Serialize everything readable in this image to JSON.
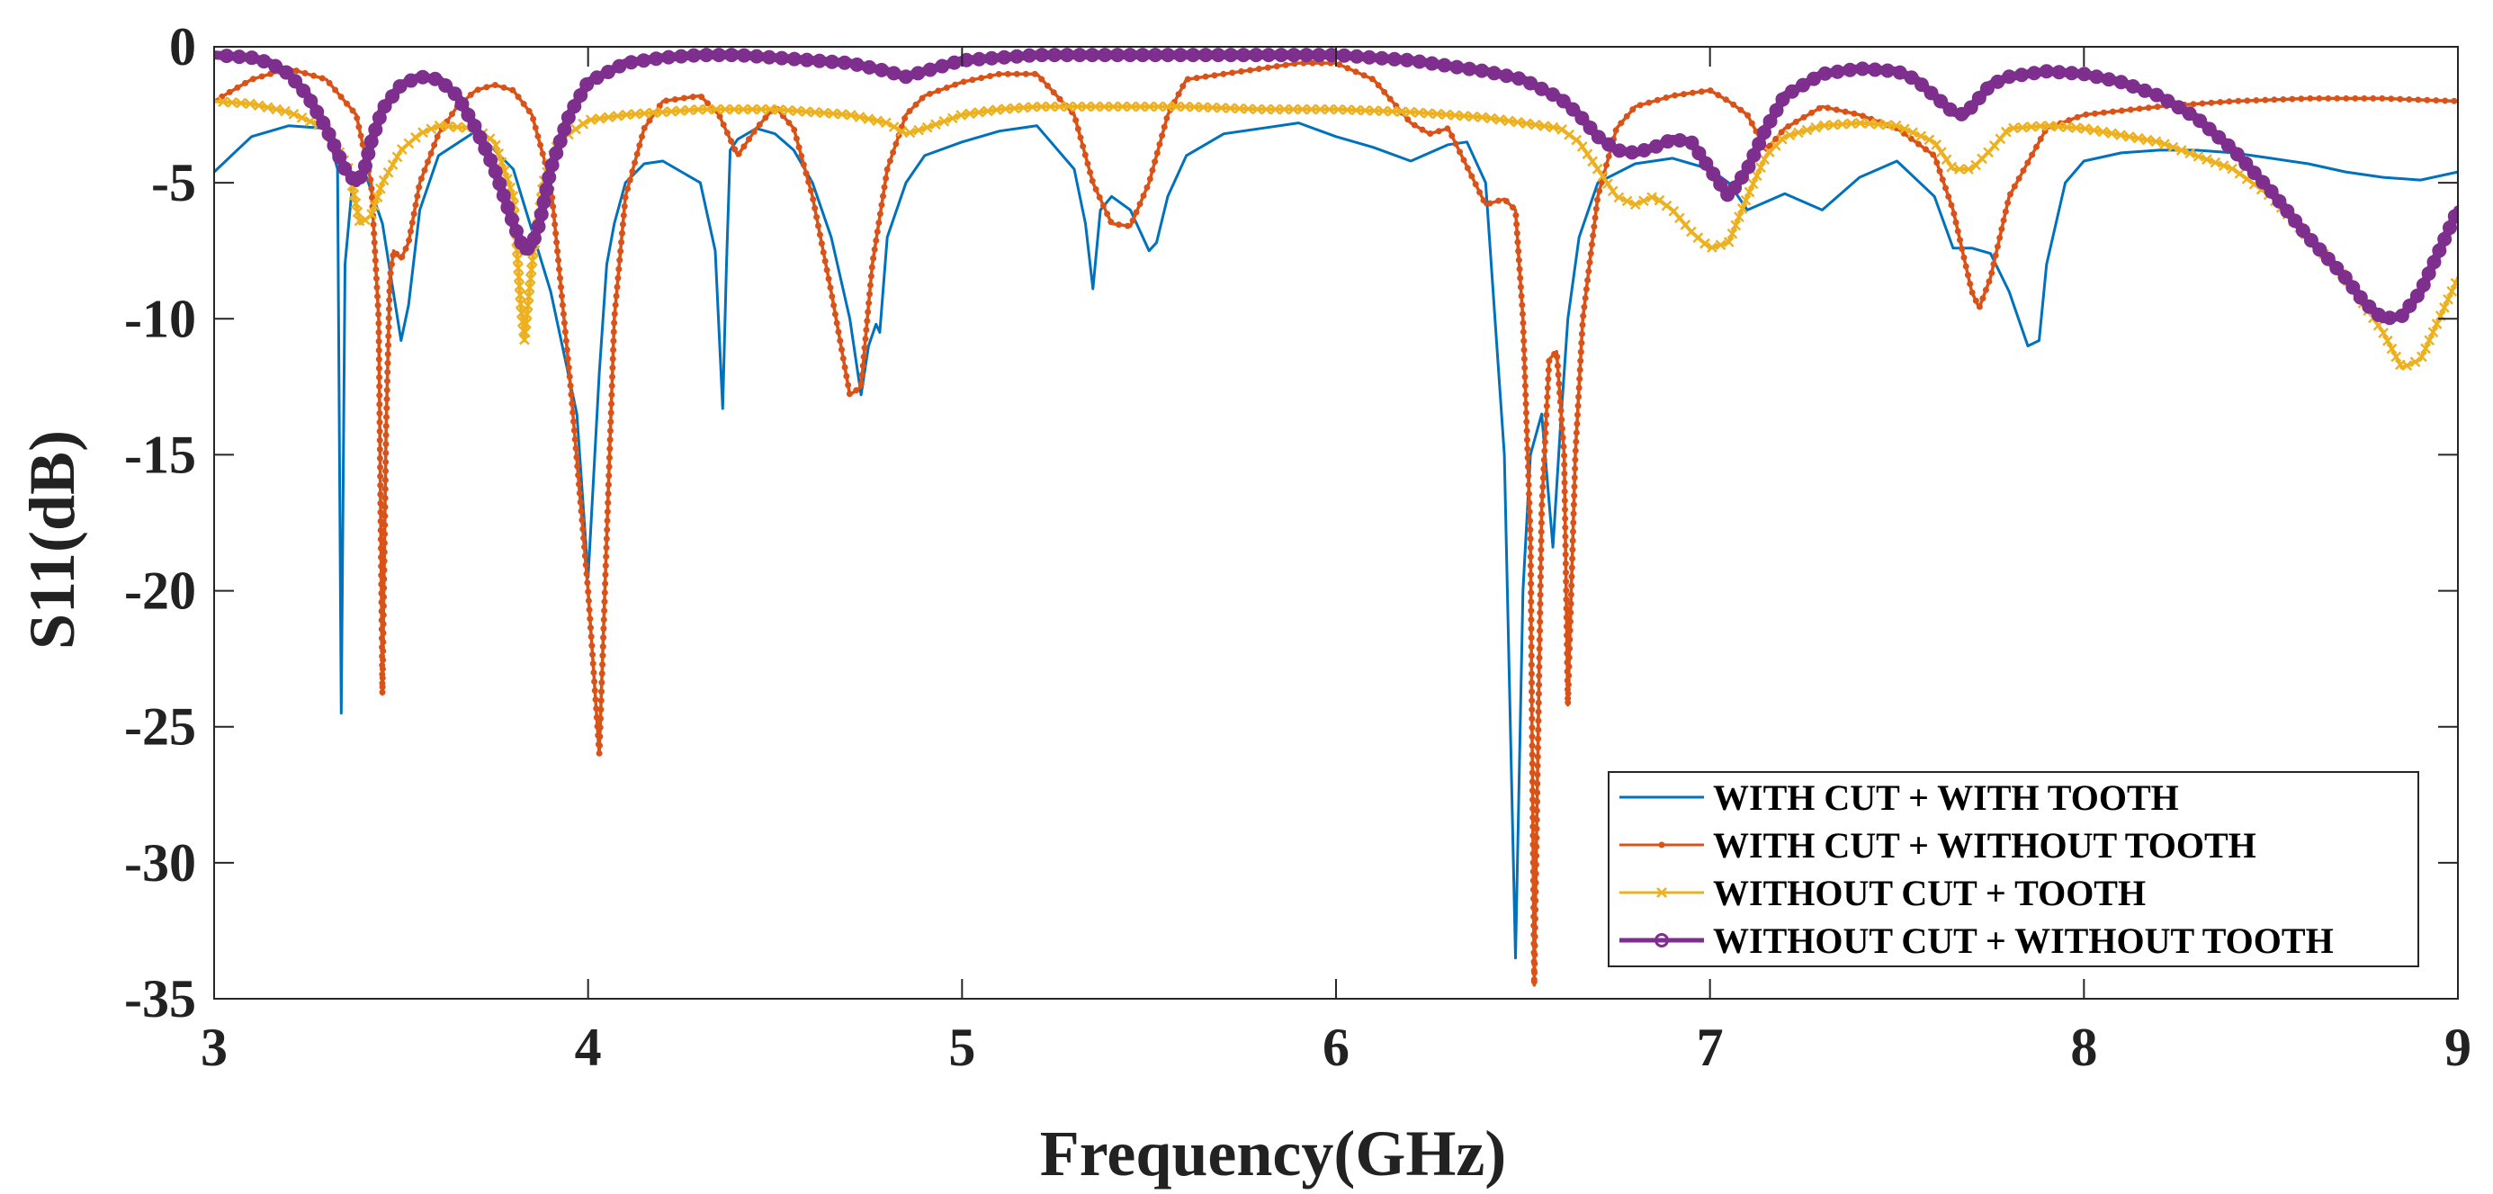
{
  "chart_data": {
    "type": "line",
    "title": "",
    "xlabel": "Frequency(GHz)",
    "ylabel": "S11(dB)",
    "xlim": [
      3,
      9
    ],
    "ylim": [
      -35,
      0
    ],
    "xticks": [
      3,
      4,
      5,
      6,
      7,
      8,
      9
    ],
    "yticks": [
      0,
      -5,
      -10,
      -15,
      -20,
      -25,
      -30,
      -35
    ],
    "xtick_labels": [
      "3",
      "4",
      "5",
      "6",
      "7",
      "8",
      "9"
    ],
    "ytick_labels": [
      "0",
      "-5",
      "-10",
      "-15",
      "-20",
      "-25",
      "-30",
      "-35"
    ],
    "grid": false,
    "legend_position": "bottom-right",
    "series": [
      {
        "name": "WITH CUT + WITH TOOTH",
        "color": "#0072BD",
        "marker": "none",
        "x": [
          3.0,
          3.1,
          3.2,
          3.3,
          3.33,
          3.34,
          3.35,
          3.37,
          3.4,
          3.45,
          3.5,
          3.52,
          3.55,
          3.6,
          3.7,
          3.8,
          3.9,
          3.97,
          4.0,
          4.03,
          4.05,
          4.07,
          4.1,
          4.15,
          4.2,
          4.3,
          4.34,
          4.36,
          4.37,
          4.38,
          4.4,
          4.45,
          4.5,
          4.55,
          4.6,
          4.65,
          4.7,
          4.73,
          4.75,
          4.77,
          4.78,
          4.8,
          4.85,
          4.9,
          5.0,
          5.1,
          5.2,
          5.3,
          5.33,
          5.35,
          5.37,
          5.4,
          5.45,
          5.5,
          5.52,
          5.55,
          5.6,
          5.7,
          5.8,
          5.9,
          6.0,
          6.1,
          6.2,
          6.3,
          6.35,
          6.4,
          6.45,
          6.48,
          6.5,
          6.52,
          6.55,
          6.58,
          6.6,
          6.62,
          6.65,
          6.7,
          6.8,
          6.9,
          7.0,
          7.05,
          7.1,
          7.2,
          7.3,
          7.4,
          7.5,
          7.6,
          7.65,
          7.7,
          7.75,
          7.8,
          7.85,
          7.88,
          7.9,
          7.95,
          8.0,
          8.1,
          8.2,
          8.3,
          8.4,
          8.5,
          8.6,
          8.7,
          8.8,
          8.9,
          9.0
        ],
        "y": [
          -4.6,
          -3.3,
          -2.9,
          -3.0,
          -4.5,
          -24.5,
          -8.0,
          -5.0,
          -4.5,
          -6.5,
          -10.8,
          -9.5,
          -6.0,
          -4.0,
          -3.1,
          -4.5,
          -9.0,
          -13.5,
          -19.5,
          -12.0,
          -8.0,
          -6.5,
          -5.0,
          -4.3,
          -4.2,
          -5.0,
          -7.5,
          -13.3,
          -8.0,
          -3.8,
          -3.4,
          -3.0,
          -3.2,
          -3.8,
          -5.0,
          -7.0,
          -10.0,
          -12.8,
          -11.0,
          -10.2,
          -10.5,
          -7.0,
          -5.0,
          -4.0,
          -3.5,
          -3.1,
          -2.9,
          -4.5,
          -6.5,
          -8.9,
          -6.0,
          -5.5,
          -6.0,
          -7.5,
          -7.2,
          -5.5,
          -4.0,
          -3.2,
          -3.0,
          -2.8,
          -3.3,
          -3.7,
          -4.2,
          -3.6,
          -3.5,
          -5.0,
          -15.0,
          -33.5,
          -20.0,
          -15.0,
          -13.5,
          -18.4,
          -14.0,
          -10.0,
          -7.0,
          -5.0,
          -4.3,
          -4.1,
          -4.5,
          -5.0,
          -6.0,
          -5.4,
          -6.0,
          -4.8,
          -4.2,
          -5.5,
          -7.4,
          -7.4,
          -7.6,
          -9.0,
          -11.0,
          -10.8,
          -8.0,
          -5.0,
          -4.2,
          -3.9,
          -3.8,
          -3.8,
          -3.9,
          -4.1,
          -4.3,
          -4.6,
          -4.8,
          -4.9,
          -4.6
        ]
      },
      {
        "name": "WITH CUT + WITHOUT TOOTH",
        "color": "#D95319",
        "marker": "point",
        "x": [
          3.0,
          3.1,
          3.2,
          3.3,
          3.38,
          3.42,
          3.44,
          3.45,
          3.46,
          3.47,
          3.48,
          3.5,
          3.52,
          3.55,
          3.6,
          3.65,
          3.7,
          3.75,
          3.8,
          3.85,
          3.9,
          3.95,
          4.0,
          4.03,
          4.05,
          4.07,
          4.1,
          4.15,
          4.2,
          4.3,
          4.35,
          4.4,
          4.45,
          4.5,
          4.55,
          4.6,
          4.65,
          4.7,
          4.73,
          4.76,
          4.8,
          4.85,
          4.9,
          5.0,
          5.1,
          5.2,
          5.3,
          5.35,
          5.4,
          5.45,
          5.5,
          5.55,
          5.6,
          5.7,
          5.8,
          5.9,
          6.0,
          6.1,
          6.2,
          6.25,
          6.3,
          6.4,
          6.45,
          6.48,
          6.5,
          6.52,
          6.53,
          6.55,
          6.57,
          6.59,
          6.61,
          6.62,
          6.64,
          6.66,
          6.7,
          6.75,
          6.8,
          6.9,
          7.0,
          7.05,
          7.1,
          7.15,
          7.2,
          7.3,
          7.4,
          7.5,
          7.6,
          7.65,
          7.7,
          7.72,
          7.75,
          7.8,
          7.9,
          8.0,
          8.2,
          8.4,
          8.6,
          8.8,
          9.0
        ],
        "y": [
          -2.0,
          -1.2,
          -0.8,
          -1.2,
          -2.5,
          -5.0,
          -10.0,
          -23.8,
          -14.0,
          -8.5,
          -7.5,
          -7.8,
          -7.2,
          -5.0,
          -3.2,
          -2.2,
          -1.6,
          -1.4,
          -1.6,
          -2.5,
          -5.0,
          -12.0,
          -20.0,
          -26.0,
          -18.0,
          -10.0,
          -5.5,
          -3.0,
          -2.0,
          -1.8,
          -2.5,
          -4.0,
          -3.0,
          -2.2,
          -3.0,
          -5.5,
          -9.0,
          -12.8,
          -12.5,
          -8.0,
          -4.5,
          -2.5,
          -1.8,
          -1.3,
          -1.0,
          -1.0,
          -2.5,
          -5.0,
          -6.5,
          -6.6,
          -5.0,
          -2.5,
          -1.2,
          -1.0,
          -0.8,
          -0.6,
          -0.6,
          -1.2,
          -2.8,
          -3.2,
          -3.0,
          -5.8,
          -5.6,
          -6.0,
          -10.0,
          -18.0,
          -34.5,
          -17.0,
          -11.5,
          -11.2,
          -15.0,
          -24.2,
          -15.0,
          -10.0,
          -5.5,
          -3.0,
          -2.2,
          -1.8,
          -1.6,
          -2.0,
          -2.5,
          -3.8,
          -3.0,
          -2.2,
          -2.5,
          -3.0,
          -4.0,
          -6.0,
          -9.0,
          -9.6,
          -8.5,
          -5.5,
          -3.0,
          -2.5,
          -2.2,
          -2.0,
          -1.9,
          -1.9,
          -2.0
        ]
      },
      {
        "name": "WITHOUT CUT + TOOTH",
        "color": "#EDB120",
        "marker": "x",
        "x": [
          3.0,
          3.1,
          3.2,
          3.3,
          3.36,
          3.39,
          3.42,
          3.45,
          3.5,
          3.55,
          3.6,
          3.7,
          3.75,
          3.8,
          3.82,
          3.83,
          3.85,
          3.88,
          3.92,
          4.0,
          4.1,
          4.2,
          4.3,
          4.4,
          4.5,
          4.6,
          4.7,
          4.8,
          4.85,
          4.9,
          5.0,
          5.1,
          5.2,
          5.4,
          5.6,
          5.8,
          6.0,
          6.2,
          6.4,
          6.6,
          6.65,
          6.7,
          6.75,
          6.8,
          6.85,
          6.9,
          6.95,
          7.0,
          7.05,
          7.1,
          7.15,
          7.2,
          7.3,
          7.4,
          7.5,
          7.6,
          7.65,
          7.7,
          7.75,
          7.8,
          7.9,
          8.0,
          8.2,
          8.4,
          8.5,
          8.6,
          8.7,
          8.8,
          8.85,
          8.9,
          8.95,
          9.0
        ],
        "y": [
          -2.0,
          -2.1,
          -2.4,
          -3.0,
          -4.5,
          -6.5,
          -6.2,
          -5.0,
          -3.8,
          -3.2,
          -2.9,
          -3.0,
          -3.5,
          -5.5,
          -9.5,
          -10.8,
          -8.0,
          -5.0,
          -3.5,
          -2.7,
          -2.5,
          -2.4,
          -2.3,
          -2.3,
          -2.3,
          -2.4,
          -2.5,
          -2.8,
          -3.2,
          -3.0,
          -2.5,
          -2.3,
          -2.2,
          -2.2,
          -2.2,
          -2.3,
          -2.3,
          -2.4,
          -2.6,
          -3.0,
          -3.5,
          -4.5,
          -5.5,
          -5.8,
          -5.5,
          -6.0,
          -6.8,
          -7.4,
          -7.2,
          -5.5,
          -4.0,
          -3.3,
          -2.9,
          -2.8,
          -2.9,
          -3.5,
          -4.5,
          -4.5,
          -3.8,
          -3.0,
          -2.9,
          -3.0,
          -3.5,
          -4.5,
          -5.5,
          -7.0,
          -8.5,
          -10.5,
          -11.8,
          -11.5,
          -10.0,
          -8.5
        ]
      },
      {
        "name": "WITHOUT CUT + WITHOUT TOOTH",
        "color": "#7E2F8E",
        "marker": "o",
        "x": [
          3.0,
          3.1,
          3.15,
          3.2,
          3.25,
          3.3,
          3.35,
          3.38,
          3.4,
          3.42,
          3.45,
          3.5,
          3.55,
          3.6,
          3.65,
          3.7,
          3.75,
          3.8,
          3.83,
          3.85,
          3.87,
          3.9,
          3.95,
          4.0,
          4.1,
          4.2,
          4.3,
          4.4,
          4.5,
          4.6,
          4.7,
          4.8,
          4.85,
          4.9,
          5.0,
          5.1,
          5.2,
          5.3,
          5.4,
          5.5,
          5.6,
          5.7,
          5.8,
          5.9,
          6.0,
          6.1,
          6.2,
          6.3,
          6.4,
          6.5,
          6.6,
          6.65,
          6.7,
          6.75,
          6.8,
          6.85,
          6.9,
          6.95,
          7.0,
          7.05,
          7.1,
          7.15,
          7.2,
          7.3,
          7.4,
          7.5,
          7.55,
          7.6,
          7.65,
          7.68,
          7.7,
          7.75,
          7.8,
          7.9,
          8.0,
          8.1,
          8.2,
          8.3,
          8.4,
          8.5,
          8.6,
          8.7,
          8.75,
          8.8,
          8.85,
          8.9,
          8.95,
          9.0
        ],
        "y": [
          -0.3,
          -0.4,
          -0.6,
          -1.0,
          -1.8,
          -3.0,
          -4.5,
          -5.0,
          -4.6,
          -3.5,
          -2.3,
          -1.4,
          -1.1,
          -1.2,
          -1.8,
          -3.0,
          -4.5,
          -6.5,
          -7.5,
          -7.3,
          -6.5,
          -4.5,
          -2.5,
          -1.3,
          -0.6,
          -0.4,
          -0.3,
          -0.3,
          -0.4,
          -0.5,
          -0.6,
          -0.9,
          -1.1,
          -0.9,
          -0.5,
          -0.4,
          -0.3,
          -0.3,
          -0.3,
          -0.3,
          -0.3,
          -0.3,
          -0.3,
          -0.3,
          -0.3,
          -0.4,
          -0.5,
          -0.7,
          -0.9,
          -1.2,
          -1.9,
          -2.5,
          -3.3,
          -3.8,
          -3.9,
          -3.7,
          -3.4,
          -3.5,
          -4.5,
          -5.5,
          -4.5,
          -3.0,
          -1.8,
          -1.0,
          -0.8,
          -0.9,
          -1.2,
          -1.8,
          -2.4,
          -2.5,
          -2.2,
          -1.4,
          -1.1,
          -0.9,
          -1.0,
          -1.3,
          -1.8,
          -2.6,
          -3.8,
          -5.3,
          -7.0,
          -8.5,
          -9.4,
          -10.0,
          -9.9,
          -9.0,
          -7.5,
          -6.0
        ]
      }
    ]
  }
}
